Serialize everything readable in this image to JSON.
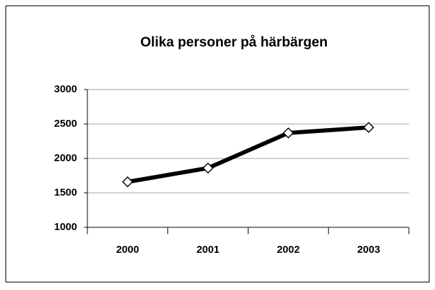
{
  "chart_data": {
    "type": "line",
    "title": "Olika personer på härbärgen",
    "categories": [
      "2000",
      "2001",
      "2002",
      "2003"
    ],
    "values": [
      1660,
      1860,
      2370,
      2450
    ],
    "color": "#000000",
    "ylim": [
      1000,
      3000
    ],
    "yticks": [
      1000,
      1500,
      2000,
      2500,
      3000
    ],
    "grid": true
  }
}
